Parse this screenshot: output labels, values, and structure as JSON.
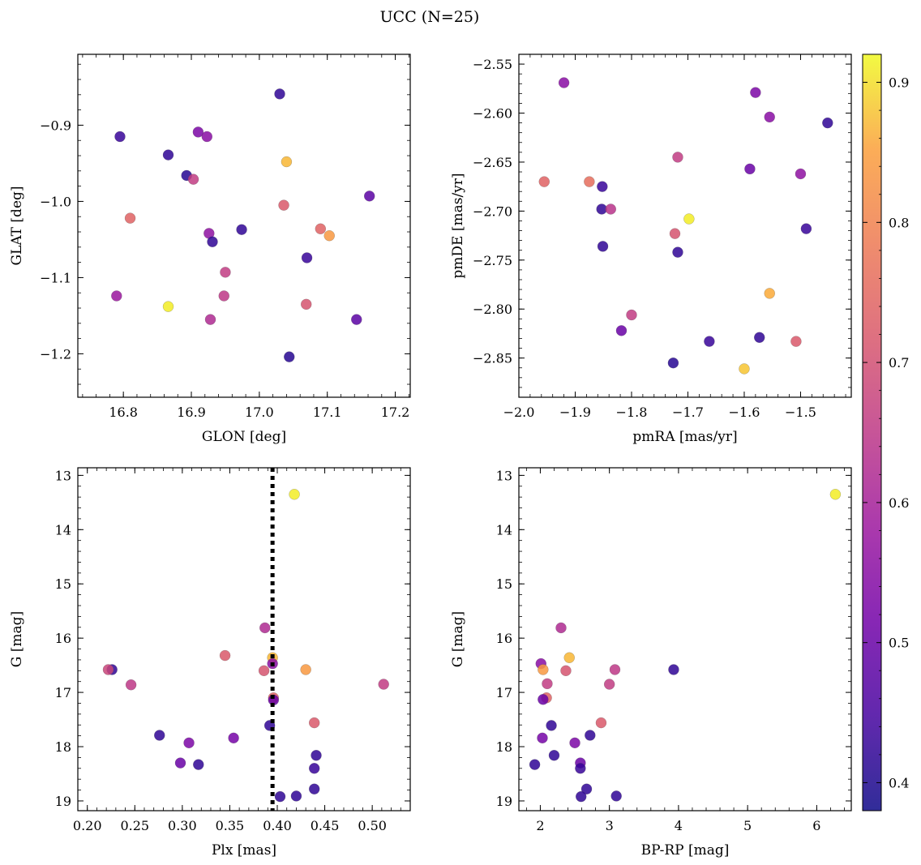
{
  "figure": {
    "title": "UCC (N=25)"
  },
  "colorbar": {
    "cmap": "plasma",
    "range": [
      0.38,
      0.92
    ],
    "ticks": [
      "0.4",
      "0.5",
      "0.6",
      "0.7",
      "0.8",
      "0.9"
    ],
    "tick_values": [
      0.4,
      0.5,
      0.6,
      0.7,
      0.8,
      0.9
    ]
  },
  "chart_data": [
    {
      "type": "scatter",
      "id": "glon-glat",
      "title": "",
      "xlabel": "GLON [deg]",
      "ylabel": "GLAT [deg]",
      "xlim": [
        16.733,
        17.222
      ],
      "ylim": [
        -1.257,
        -0.807
      ],
      "y_inverted": false,
      "xticks": [
        16.8,
        16.9,
        17.0,
        17.1,
        17.2
      ],
      "xtick_labels": [
        "16.8",
        "16.9",
        "17.0",
        "17.1",
        "17.2"
      ],
      "yticks": [
        -0.9,
        -1.0,
        -1.1,
        -1.2
      ],
      "ytick_labels": [
        "−0.9",
        "−1.0",
        "−1.1",
        "−1.2"
      ],
      "points": [
        {
          "x": 17.03,
          "y": -0.859,
          "c": 0.42
        },
        {
          "x": 16.795,
          "y": -0.915,
          "c": 0.43
        },
        {
          "x": 16.91,
          "y": -0.909,
          "c": 0.53
        },
        {
          "x": 16.923,
          "y": -0.915,
          "c": 0.55
        },
        {
          "x": 16.866,
          "y": -0.939,
          "c": 0.42
        },
        {
          "x": 17.04,
          "y": -0.948,
          "c": 0.87
        },
        {
          "x": 16.893,
          "y": -0.966,
          "c": 0.41
        },
        {
          "x": 16.903,
          "y": -0.971,
          "c": 0.66
        },
        {
          "x": 17.162,
          "y": -0.993,
          "c": 0.48
        },
        {
          "x": 17.036,
          "y": -1.005,
          "c": 0.72
        },
        {
          "x": 16.81,
          "y": -1.022,
          "c": 0.74
        },
        {
          "x": 17.09,
          "y": -1.036,
          "c": 0.74
        },
        {
          "x": 17.103,
          "y": -1.045,
          "c": 0.84
        },
        {
          "x": 16.974,
          "y": -1.037,
          "c": 0.42
        },
        {
          "x": 16.926,
          "y": -1.042,
          "c": 0.56
        },
        {
          "x": 16.931,
          "y": -1.053,
          "c": 0.42
        },
        {
          "x": 17.07,
          "y": -1.074,
          "c": 0.43
        },
        {
          "x": 16.95,
          "y": -1.093,
          "c": 0.66
        },
        {
          "x": 16.79,
          "y": -1.124,
          "c": 0.58
        },
        {
          "x": 16.948,
          "y": -1.124,
          "c": 0.65
        },
        {
          "x": 16.866,
          "y": -1.138,
          "c": 0.91
        },
        {
          "x": 17.069,
          "y": -1.135,
          "c": 0.71
        },
        {
          "x": 16.928,
          "y": -1.155,
          "c": 0.62
        },
        {
          "x": 17.143,
          "y": -1.155,
          "c": 0.48
        },
        {
          "x": 17.044,
          "y": -1.204,
          "c": 0.41
        }
      ]
    },
    {
      "type": "scatter",
      "id": "pmra-pmde",
      "title": "",
      "xlabel": "pmRA [mas/yr]",
      "ylabel": "pmDE [mas/yr]",
      "xlim": [
        -2.0,
        -1.41
      ],
      "ylim": [
        -2.89,
        -2.54
      ],
      "y_inverted": false,
      "xticks": [
        -2.0,
        -1.9,
        -1.8,
        -1.7,
        -1.6,
        -1.5
      ],
      "xtick_labels": [
        "−2.0",
        "−1.9",
        "−1.8",
        "−1.7",
        "−1.6",
        "−1.5"
      ],
      "yticks": [
        -2.55,
        -2.6,
        -2.65,
        -2.7,
        -2.75,
        -2.8,
        -2.85
      ],
      "ytick_labels": [
        "−2.55",
        "−2.60",
        "−2.65",
        "−2.70",
        "−2.75",
        "−2.80",
        "−2.85"
      ],
      "points": [
        {
          "x": -1.92,
          "y": -2.569,
          "c": 0.55
        },
        {
          "x": -1.58,
          "y": -2.579,
          "c": 0.53
        },
        {
          "x": -1.555,
          "y": -2.604,
          "c": 0.55
        },
        {
          "x": -1.452,
          "y": -2.61,
          "c": 0.42
        },
        {
          "x": -1.955,
          "y": -2.67,
          "c": 0.74
        },
        {
          "x": -1.875,
          "y": -2.67,
          "c": 0.76
        },
        {
          "x": -1.718,
          "y": -2.645,
          "c": 0.66
        },
        {
          "x": -1.59,
          "y": -2.657,
          "c": 0.5
        },
        {
          "x": -1.5,
          "y": -2.662,
          "c": 0.56
        },
        {
          "x": -1.852,
          "y": -2.675,
          "c": 0.43
        },
        {
          "x": -1.853,
          "y": -2.698,
          "c": 0.42
        },
        {
          "x": -1.837,
          "y": -2.698,
          "c": 0.64
        },
        {
          "x": -1.698,
          "y": -2.708,
          "c": 0.91
        },
        {
          "x": -1.49,
          "y": -2.718,
          "c": 0.43
        },
        {
          "x": -1.723,
          "y": -2.723,
          "c": 0.71
        },
        {
          "x": -1.851,
          "y": -2.736,
          "c": 0.42
        },
        {
          "x": -1.718,
          "y": -2.742,
          "c": 0.42
        },
        {
          "x": -1.555,
          "y": -2.784,
          "c": 0.86
        },
        {
          "x": -1.8,
          "y": -2.806,
          "c": 0.66
        },
        {
          "x": -1.818,
          "y": -2.822,
          "c": 0.5
        },
        {
          "x": -1.573,
          "y": -2.829,
          "c": 0.42
        },
        {
          "x": -1.662,
          "y": -2.833,
          "c": 0.43
        },
        {
          "x": -1.508,
          "y": -2.833,
          "c": 0.72
        },
        {
          "x": -1.726,
          "y": -2.855,
          "c": 0.41
        },
        {
          "x": -1.6,
          "y": -2.861,
          "c": 0.88
        }
      ]
    },
    {
      "type": "scatter",
      "id": "plx-g",
      "title": "",
      "xlabel": "Plx [mas]",
      "ylabel": "G [mag]",
      "xlim": [
        0.19,
        0.54
      ],
      "ylim": [
        19.18,
        12.86
      ],
      "y_inverted": true,
      "xticks": [
        0.2,
        0.25,
        0.3,
        0.35,
        0.4,
        0.45,
        0.5
      ],
      "xtick_labels": [
        "0.20",
        "0.25",
        "0.30",
        "0.35",
        "0.40",
        "0.45",
        "0.50"
      ],
      "yticks": [
        13,
        14,
        15,
        16,
        17,
        18,
        19
      ],
      "ytick_labels": [
        "13",
        "14",
        "15",
        "16",
        "17",
        "18",
        "19"
      ],
      "vline": {
        "x": 0.395,
        "style": "dotted"
      },
      "points": [
        {
          "x": 0.418,
          "y": 13.35,
          "c": 0.91
        },
        {
          "x": 0.387,
          "y": 15.81,
          "c": 0.62
        },
        {
          "x": 0.345,
          "y": 16.32,
          "c": 0.72
        },
        {
          "x": 0.395,
          "y": 16.36,
          "c": 0.87
        },
        {
          "x": 0.395,
          "y": 16.47,
          "c": 0.55
        },
        {
          "x": 0.226,
          "y": 16.58,
          "c": 0.42
        },
        {
          "x": 0.222,
          "y": 16.58,
          "c": 0.68
        },
        {
          "x": 0.386,
          "y": 16.6,
          "c": 0.71
        },
        {
          "x": 0.43,
          "y": 16.58,
          "c": 0.84
        },
        {
          "x": 0.246,
          "y": 16.86,
          "c": 0.65
        },
        {
          "x": 0.512,
          "y": 16.85,
          "c": 0.66
        },
        {
          "x": 0.396,
          "y": 17.1,
          "c": 0.74
        },
        {
          "x": 0.396,
          "y": 17.14,
          "c": 0.5
        },
        {
          "x": 0.439,
          "y": 17.56,
          "c": 0.72
        },
        {
          "x": 0.392,
          "y": 17.61,
          "c": 0.42
        },
        {
          "x": 0.276,
          "y": 17.79,
          "c": 0.42
        },
        {
          "x": 0.354,
          "y": 17.84,
          "c": 0.52
        },
        {
          "x": 0.307,
          "y": 17.93,
          "c": 0.53
        },
        {
          "x": 0.441,
          "y": 18.16,
          "c": 0.42
        },
        {
          "x": 0.298,
          "y": 18.3,
          "c": 0.5
        },
        {
          "x": 0.317,
          "y": 18.33,
          "c": 0.42
        },
        {
          "x": 0.439,
          "y": 18.4,
          "c": 0.43
        },
        {
          "x": 0.439,
          "y": 18.78,
          "c": 0.42
        },
        {
          "x": 0.403,
          "y": 18.92,
          "c": 0.42
        },
        {
          "x": 0.42,
          "y": 18.91,
          "c": 0.42
        }
      ]
    },
    {
      "type": "scatter",
      "id": "bprp-g",
      "title": "",
      "xlabel": "BP-RP [mag]",
      "ylabel": "G [mag]",
      "xlim": [
        1.69,
        6.5
      ],
      "ylim": [
        19.18,
        12.86
      ],
      "y_inverted": true,
      "xticks": [
        2,
        3,
        4,
        5,
        6
      ],
      "xtick_labels": [
        "2",
        "3",
        "4",
        "5",
        "6"
      ],
      "yticks": [
        13,
        14,
        15,
        16,
        17,
        18,
        19
      ],
      "ytick_labels": [
        "13",
        "14",
        "15",
        "16",
        "17",
        "18",
        "19"
      ],
      "points": [
        {
          "x": 6.27,
          "y": 13.35,
          "c": 0.91
        },
        {
          "x": 2.3,
          "y": 15.81,
          "c": 0.62
        },
        {
          "x": 2.42,
          "y": 16.36,
          "c": 0.87
        },
        {
          "x": 2.01,
          "y": 16.47,
          "c": 0.55
        },
        {
          "x": 2.04,
          "y": 16.58,
          "c": 0.84
        },
        {
          "x": 2.37,
          "y": 16.6,
          "c": 0.71
        },
        {
          "x": 3.08,
          "y": 16.58,
          "c": 0.65
        },
        {
          "x": 3.93,
          "y": 16.58,
          "c": 0.42
        },
        {
          "x": 2.1,
          "y": 16.84,
          "c": 0.66
        },
        {
          "x": 3.0,
          "y": 16.85,
          "c": 0.66
        },
        {
          "x": 2.09,
          "y": 17.1,
          "c": 0.74
        },
        {
          "x": 2.04,
          "y": 17.13,
          "c": 0.5
        },
        {
          "x": 2.88,
          "y": 17.56,
          "c": 0.72
        },
        {
          "x": 2.16,
          "y": 17.61,
          "c": 0.42
        },
        {
          "x": 2.72,
          "y": 17.79,
          "c": 0.42
        },
        {
          "x": 2.03,
          "y": 17.84,
          "c": 0.52
        },
        {
          "x": 2.5,
          "y": 17.93,
          "c": 0.53
        },
        {
          "x": 2.2,
          "y": 18.16,
          "c": 0.42
        },
        {
          "x": 2.58,
          "y": 18.3,
          "c": 0.5
        },
        {
          "x": 1.92,
          "y": 18.33,
          "c": 0.42
        },
        {
          "x": 2.58,
          "y": 18.4,
          "c": 0.43
        },
        {
          "x": 2.67,
          "y": 18.78,
          "c": 0.42
        },
        {
          "x": 2.59,
          "y": 18.92,
          "c": 0.42
        },
        {
          "x": 3.1,
          "y": 18.91,
          "c": 0.42
        }
      ]
    }
  ]
}
